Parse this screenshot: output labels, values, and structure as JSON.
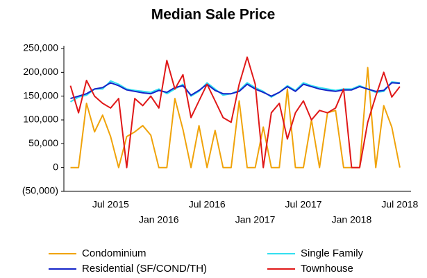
{
  "chart_data": {
    "type": "line",
    "title": "Median Sale Price",
    "categories": [
      null,
      null,
      null,
      null,
      null,
      "Jul 2015",
      null,
      null,
      null,
      null,
      null,
      "Jan 2016",
      null,
      null,
      null,
      null,
      null,
      "Jul 2016",
      null,
      null,
      null,
      null,
      null,
      "Jan 2017",
      null,
      null,
      null,
      null,
      null,
      "Jul 2017",
      null,
      null,
      null,
      null,
      null,
      "Jan 2018",
      null,
      null,
      null,
      null,
      null,
      "Jul 2018"
    ],
    "series": [
      {
        "name": "Condominium",
        "color": "#f0a30a",
        "values": [
          0,
          0,
          135000,
          75000,
          110000,
          65000,
          0,
          65000,
          75000,
          88000,
          68000,
          0,
          0,
          145000,
          80000,
          0,
          88000,
          0,
          78000,
          0,
          0,
          140000,
          0,
          0,
          85000,
          0,
          0,
          165000,
          0,
          0,
          100000,
          0,
          115000,
          120000,
          0,
          0,
          0,
          210000,
          0,
          130000,
          85000,
          0
        ]
      },
      {
        "name": "Single Family",
        "color": "#33dff0",
        "values": [
          138000,
          148000,
          152000,
          165000,
          165000,
          182000,
          175000,
          165000,
          162000,
          160000,
          158000,
          165000,
          155000,
          165000,
          175000,
          150000,
          160000,
          178000,
          165000,
          152000,
          155000,
          162000,
          178000,
          168000,
          160000,
          148000,
          158000,
          172000,
          162000,
          178000,
          172000,
          168000,
          165000,
          162000,
          165000,
          165000,
          172000,
          165000,
          158000,
          160000,
          180000,
          178000
        ]
      },
      {
        "name": "Residential (SF/COND/TH)",
        "color": "#1424c8",
        "values": [
          145000,
          150000,
          155000,
          165000,
          168000,
          178000,
          172000,
          163000,
          160000,
          157000,
          155000,
          162000,
          158000,
          168000,
          172000,
          152000,
          162000,
          175000,
          162000,
          155000,
          155000,
          160000,
          175000,
          165000,
          158000,
          150000,
          158000,
          170000,
          160000,
          175000,
          170000,
          165000,
          162000,
          160000,
          163000,
          163000,
          170000,
          165000,
          160000,
          162000,
          178000,
          177000
        ]
      },
      {
        "name": "Townhouse",
        "color": "#e01818",
        "values": [
          172000,
          115000,
          183000,
          150000,
          135000,
          125000,
          145000,
          0,
          145000,
          130000,
          150000,
          125000,
          225000,
          165000,
          195000,
          105000,
          140000,
          175000,
          140000,
          105000,
          95000,
          175000,
          232000,
          175000,
          0,
          115000,
          135000,
          60000,
          115000,
          140000,
          100000,
          120000,
          115000,
          125000,
          165000,
          0,
          0,
          95000,
          150000,
          200000,
          148000,
          170000
        ]
      }
    ],
    "ylim": [
      -50000,
      250000
    ],
    "yticks": [
      {
        "value": -50000,
        "label": "(50,000)"
      },
      0,
      {
        "value": 50000,
        "label": "50,000"
      },
      {
        "value": 100000,
        "label": "100,000"
      },
      {
        "value": 150000,
        "label": "150,000"
      },
      {
        "value": 200000,
        "label": "200,000"
      },
      {
        "value": 250000,
        "label": "250,000"
      }
    ],
    "grid": false
  }
}
